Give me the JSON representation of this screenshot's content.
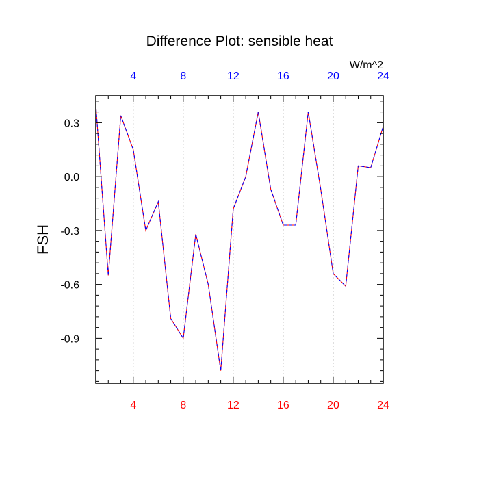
{
  "chart_data": {
    "type": "line",
    "title": "Difference Plot: sensible heat",
    "ylabel": "FSH",
    "xlabel": "",
    "units": "W/m^2",
    "xlim": [
      1,
      24
    ],
    "ylim": [
      -1.15,
      0.45
    ],
    "grid": "vertical dotted lines at major x ticks",
    "x_ticks": [
      4,
      8,
      12,
      16,
      20,
      24
    ],
    "x_ticks_bottom_color": "#ff0000",
    "x_ticks_top_color": "#0000ff",
    "y_ticks": [
      0.3,
      0.0,
      -0.3,
      -0.6,
      -0.9
    ],
    "y_tick_labels": [
      "0.3",
      "0.0",
      "-0.3",
      "-0.6",
      "-0.9"
    ],
    "series": [
      {
        "line_colors": [
          "#ff0000",
          "#0000ff"
        ],
        "line_style": "dashed",
        "x": [
          1,
          2,
          3,
          4,
          5,
          6,
          7,
          8,
          9,
          10,
          11,
          12,
          13,
          14,
          15,
          16,
          17,
          18,
          19,
          20,
          21,
          22,
          23,
          24
        ],
        "values": [
          0.4,
          -0.55,
          0.34,
          0.15,
          -0.3,
          -0.14,
          -0.79,
          -0.9,
          -0.32,
          -0.6,
          -1.08,
          -0.18,
          0.0,
          0.36,
          -0.07,
          -0.27,
          -0.27,
          0.36,
          -0.07,
          -0.54,
          -0.61,
          0.06,
          0.05,
          0.28
        ]
      }
    ]
  }
}
